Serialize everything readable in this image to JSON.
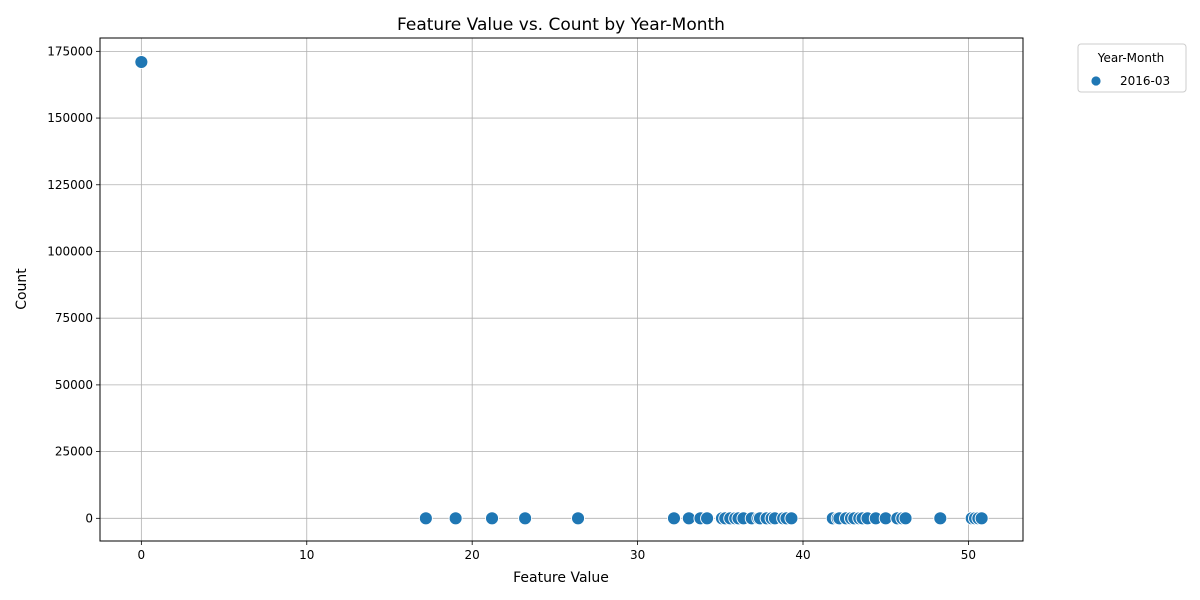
{
  "chart_data": {
    "type": "scatter",
    "title": "Feature Value vs. Count by Year-Month",
    "xlabel": "Feature Value",
    "ylabel": "Count",
    "xlim": [
      -2.5,
      53.3
    ],
    "ylim": [
      -8500,
      180000
    ],
    "xticks": [
      0,
      10,
      20,
      30,
      40,
      50
    ],
    "yticks": [
      0,
      25000,
      50000,
      75000,
      100000,
      125000,
      150000,
      175000
    ],
    "grid": true,
    "legend": {
      "title": "Year-Month",
      "placement": "outside top-right"
    },
    "series": [
      {
        "name": "2016-03",
        "color": "#1f77b4",
        "points": [
          [
            0,
            171000
          ],
          [
            17.2,
            0
          ],
          [
            19.0,
            0
          ],
          [
            21.2,
            0
          ],
          [
            23.2,
            0
          ],
          [
            26.4,
            0
          ],
          [
            32.2,
            0
          ],
          [
            33.1,
            0
          ],
          [
            33.8,
            0
          ],
          [
            34.2,
            0
          ],
          [
            35.1,
            0
          ],
          [
            35.3,
            0
          ],
          [
            35.6,
            0
          ],
          [
            35.9,
            0
          ],
          [
            36.1,
            0
          ],
          [
            36.4,
            0
          ],
          [
            36.9,
            0
          ],
          [
            37.3,
            0
          ],
          [
            37.4,
            0
          ],
          [
            37.8,
            0
          ],
          [
            38.1,
            0
          ],
          [
            38.3,
            0
          ],
          [
            38.8,
            0
          ],
          [
            39.0,
            0
          ],
          [
            39.3,
            0
          ],
          [
            41.8,
            0
          ],
          [
            42.1,
            0
          ],
          [
            42.2,
            0
          ],
          [
            42.6,
            0
          ],
          [
            42.9,
            0
          ],
          [
            43.1,
            0
          ],
          [
            43.4,
            0
          ],
          [
            43.6,
            0
          ],
          [
            43.9,
            0
          ],
          [
            44.4,
            0
          ],
          [
            45.0,
            0
          ],
          [
            45.7,
            0
          ],
          [
            46.0,
            0
          ],
          [
            46.2,
            0
          ],
          [
            48.3,
            0
          ],
          [
            50.2,
            0
          ],
          [
            50.4,
            0
          ],
          [
            50.6,
            0
          ],
          [
            50.8,
            0
          ]
        ]
      }
    ]
  }
}
